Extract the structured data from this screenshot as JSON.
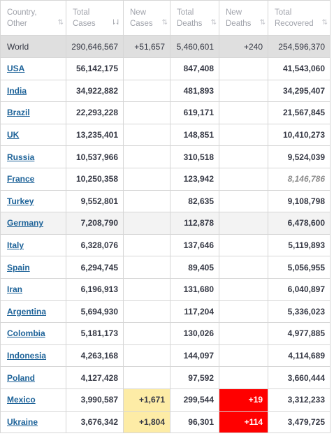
{
  "headers": [
    {
      "label": "Country,\nOther",
      "sort": "⇅",
      "active": false
    },
    {
      "label": "Total\nCases",
      "sort": "⇂⇃",
      "active": true
    },
    {
      "label": "New\nCases",
      "sort": "⇅",
      "active": false
    },
    {
      "label": "Total\nDeaths",
      "sort": "⇅",
      "active": false
    },
    {
      "label": "New\nDeaths",
      "sort": "⇅",
      "active": false
    },
    {
      "label": "Total\nRecovered",
      "sort": "⇅",
      "active": false
    }
  ],
  "world": {
    "country": "World",
    "total_cases": "290,646,567",
    "new_cases": "+51,657",
    "total_deaths": "5,460,601",
    "new_deaths": "+240",
    "total_recovered": "254,596,370"
  },
  "rows": [
    {
      "country": "USA",
      "total_cases": "56,142,175",
      "new_cases": "",
      "total_deaths": "847,408",
      "new_deaths": "",
      "total_recovered": "41,543,060"
    },
    {
      "country": "India",
      "total_cases": "34,922,882",
      "new_cases": "",
      "total_deaths": "481,893",
      "new_deaths": "",
      "total_recovered": "34,295,407"
    },
    {
      "country": "Brazil",
      "total_cases": "22,293,228",
      "new_cases": "",
      "total_deaths": "619,171",
      "new_deaths": "",
      "total_recovered": "21,567,845"
    },
    {
      "country": "UK",
      "total_cases": "13,235,401",
      "new_cases": "",
      "total_deaths": "148,851",
      "new_deaths": "",
      "total_recovered": "10,410,273"
    },
    {
      "country": "Russia",
      "total_cases": "10,537,966",
      "new_cases": "",
      "total_deaths": "310,518",
      "new_deaths": "",
      "total_recovered": "9,524,039"
    },
    {
      "country": "France",
      "total_cases": "10,250,358",
      "new_cases": "",
      "total_deaths": "123,942",
      "new_deaths": "",
      "total_recovered": "8,146,786"
    },
    {
      "country": "Turkey",
      "total_cases": "9,552,801",
      "new_cases": "",
      "total_deaths": "82,635",
      "new_deaths": "",
      "total_recovered": "9,108,798"
    },
    {
      "country": "Germany",
      "total_cases": "7,208,790",
      "new_cases": "",
      "total_deaths": "112,878",
      "new_deaths": "",
      "total_recovered": "6,478,600"
    },
    {
      "country": "Italy",
      "total_cases": "6,328,076",
      "new_cases": "",
      "total_deaths": "137,646",
      "new_deaths": "",
      "total_recovered": "5,119,893"
    },
    {
      "country": "Spain",
      "total_cases": "6,294,745",
      "new_cases": "",
      "total_deaths": "89,405",
      "new_deaths": "",
      "total_recovered": "5,056,955"
    },
    {
      "country": "Iran",
      "total_cases": "6,196,913",
      "new_cases": "",
      "total_deaths": "131,680",
      "new_deaths": "",
      "total_recovered": "6,040,897"
    },
    {
      "country": "Argentina",
      "total_cases": "5,694,930",
      "new_cases": "",
      "total_deaths": "117,204",
      "new_deaths": "",
      "total_recovered": "5,336,023"
    },
    {
      "country": "Colombia",
      "total_cases": "5,181,173",
      "new_cases": "",
      "total_deaths": "130,026",
      "new_deaths": "",
      "total_recovered": "4,977,885"
    },
    {
      "country": "Indonesia",
      "total_cases": "4,263,168",
      "new_cases": "",
      "total_deaths": "144,097",
      "new_deaths": "",
      "total_recovered": "4,114,689"
    },
    {
      "country": "Poland",
      "total_cases": "4,127,428",
      "new_cases": "",
      "total_deaths": "97,592",
      "new_deaths": "",
      "total_recovered": "3,660,444"
    },
    {
      "country": "Mexico",
      "total_cases": "3,990,587",
      "new_cases": "+1,671",
      "total_deaths": "299,544",
      "new_deaths": "+19",
      "total_recovered": "3,312,233"
    },
    {
      "country": "Ukraine",
      "total_cases": "3,676,342",
      "new_cases": "+1,804",
      "total_deaths": "96,301",
      "new_deaths": "+114",
      "total_recovered": "3,479,725"
    }
  ],
  "colors": {
    "link": "#1e6399",
    "new_cases_highlight": "#fdeca6",
    "new_deaths_highlight": "#ff0000",
    "world_row_bg": "#dfdfdf",
    "alt_row_bg": "#f3f3f3"
  }
}
